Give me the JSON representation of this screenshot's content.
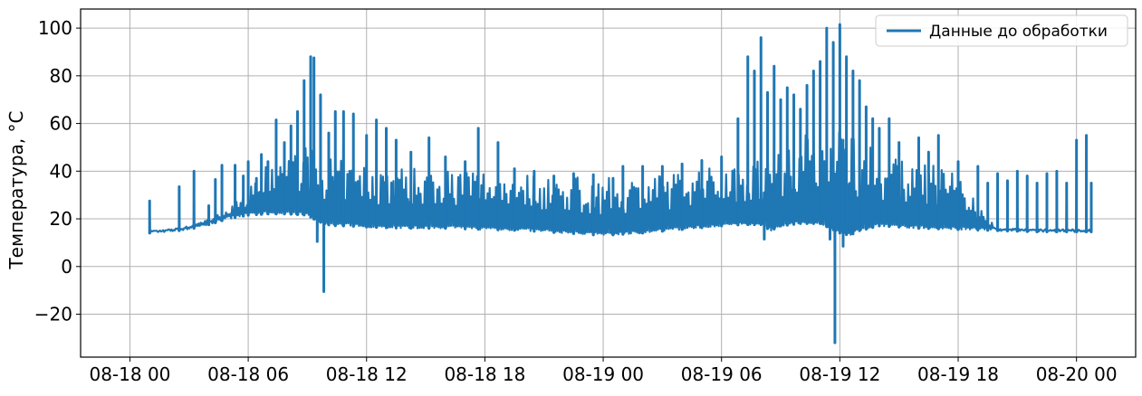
{
  "chart_data": {
    "type": "line",
    "title": "",
    "xlabel": "",
    "ylabel": "Температура, °C",
    "grid": true,
    "legend_position": "top-right",
    "xlim": [
      "2023-08-17T21:30",
      "2023-08-20T03:00"
    ],
    "ylim": [
      -38,
      108
    ],
    "x_ticks": [
      "08-18 00",
      "08-18 06",
      "08-18 12",
      "08-18 18",
      "08-19 00",
      "08-19 06",
      "08-19 12",
      "08-19 18",
      "08-20 00"
    ],
    "x_tick_values": [
      "2023-08-18T00:00",
      "2023-08-18T06:00",
      "2023-08-18T12:00",
      "2023-08-18T18:00",
      "2023-08-19T00:00",
      "2023-08-19T06:00",
      "2023-08-19T12:00",
      "2023-08-19T18:00",
      "2023-08-20T00:00"
    ],
    "y_ticks": [
      -20,
      0,
      20,
      40,
      60,
      80,
      100
    ],
    "y_tick_labels": [
      "−20",
      "0",
      "20",
      "40",
      "60",
      "80",
      "100"
    ],
    "series": [
      {
        "name": "Данные до обработки",
        "color": "#1f77b4",
        "baseline": {
          "x": [
            "2023-08-18T01:00",
            "2023-08-18T02:00",
            "2023-08-18T03:00",
            "2023-08-18T04:00",
            "2023-08-18T05:00",
            "2023-08-18T06:00",
            "2023-08-18T07:00",
            "2023-08-18T08:00",
            "2023-08-18T09:00",
            "2023-08-18T09:30",
            "2023-08-18T10:00",
            "2023-08-18T10:30",
            "2023-08-18T11:00",
            "2023-08-18T12:00",
            "2023-08-18T14:00",
            "2023-08-18T16:00",
            "2023-08-18T18:00",
            "2023-08-18T20:00",
            "2023-08-18T22:00",
            "2023-08-19T00:00",
            "2023-08-19T02:00",
            "2023-08-19T04:00",
            "2023-08-19T06:00",
            "2023-08-19T07:00",
            "2023-08-19T08:00",
            "2023-08-19T08:30",
            "2023-08-19T09:00",
            "2023-08-19T10:00",
            "2023-08-19T11:00",
            "2023-08-19T11:30",
            "2023-08-19T12:00",
            "2023-08-19T12:30",
            "2023-08-19T13:00",
            "2023-08-19T14:00",
            "2023-08-19T16:00",
            "2023-08-19T18:00",
            "2023-08-19T20:00",
            "2023-08-19T22:00",
            "2023-08-20T00:00",
            "2023-08-20T00:45"
          ],
          "y": [
            14,
            14.5,
            15.5,
            17.5,
            20,
            21.5,
            22,
            22,
            21.5,
            19,
            17.5,
            17,
            17,
            16.5,
            16,
            16,
            15.5,
            15,
            14,
            13,
            14,
            15.5,
            17,
            17.5,
            17.5,
            15,
            17,
            18,
            18,
            16,
            14,
            13,
            15,
            17,
            16,
            15.5,
            15,
            14.5,
            14.5,
            14.5
          ]
        },
        "upper_envelope": {
          "x": [
            "2023-08-18T01:00",
            "2023-08-18T02:00",
            "2023-08-18T03:00",
            "2023-08-18T04:00",
            "2023-08-18T05:00",
            "2023-08-18T06:00",
            "2023-08-18T07:00",
            "2023-08-18T08:00",
            "2023-08-18T09:00",
            "2023-08-18T10:00",
            "2023-08-18T11:00",
            "2023-08-18T12:00",
            "2023-08-18T14:00",
            "2023-08-18T16:00",
            "2023-08-18T18:00",
            "2023-08-18T20:00",
            "2023-08-18T22:00",
            "2023-08-19T00:00",
            "2023-08-19T02:00",
            "2023-08-19T04:00",
            "2023-08-19T06:00",
            "2023-08-19T08:00",
            "2023-08-19T10:00",
            "2023-08-19T12:00",
            "2023-08-19T14:00",
            "2023-08-19T16:00",
            "2023-08-19T18:00",
            "2023-08-19T19:00",
            "2023-08-19T20:00",
            "2023-08-20T00:00",
            "2023-08-20T00:45"
          ],
          "y": [
            15,
            15.5,
            17,
            20,
            24,
            32,
            43,
            47,
            50,
            46,
            44,
            43,
            42,
            42,
            41,
            40,
            38,
            37,
            38,
            40,
            43,
            46,
            55,
            62,
            48,
            43,
            42,
            25,
            16,
            15.5,
            15
          ]
        },
        "spikes": [
          {
            "x": "2023-08-18T01:00",
            "y": 27.5
          },
          {
            "x": "2023-08-18T02:30",
            "y": 33.5
          },
          {
            "x": "2023-08-18T03:15",
            "y": 40
          },
          {
            "x": "2023-08-18T04:00",
            "y": 25.5
          },
          {
            "x": "2023-08-18T04:20",
            "y": 36.5
          },
          {
            "x": "2023-08-18T04:40",
            "y": 42.5
          },
          {
            "x": "2023-08-18T05:20",
            "y": 42.5
          },
          {
            "x": "2023-08-18T05:45",
            "y": 38
          },
          {
            "x": "2023-08-18T06:00",
            "y": 44
          },
          {
            "x": "2023-08-18T06:25",
            "y": 37
          },
          {
            "x": "2023-08-18T06:40",
            "y": 47
          },
          {
            "x": "2023-08-18T07:00",
            "y": 44
          },
          {
            "x": "2023-08-18T07:25",
            "y": 61.5
          },
          {
            "x": "2023-08-18T07:50",
            "y": 52
          },
          {
            "x": "2023-08-18T08:10",
            "y": 59
          },
          {
            "x": "2023-08-18T08:30",
            "y": 65
          },
          {
            "x": "2023-08-18T08:50",
            "y": 78
          },
          {
            "x": "2023-08-18T09:10",
            "y": 88
          },
          {
            "x": "2023-08-18T09:20",
            "y": 87.5
          },
          {
            "x": "2023-08-18T09:40",
            "y": 72
          },
          {
            "x": "2023-08-18T10:05",
            "y": 56
          },
          {
            "x": "2023-08-18T10:25",
            "y": 65
          },
          {
            "x": "2023-08-18T10:50",
            "y": 65
          },
          {
            "x": "2023-08-18T11:20",
            "y": 64
          },
          {
            "x": "2023-08-18T12:00",
            "y": 55
          },
          {
            "x": "2023-08-18T12:30",
            "y": 61.5
          },
          {
            "x": "2023-08-18T13:00",
            "y": 58
          },
          {
            "x": "2023-08-18T13:30",
            "y": 53
          },
          {
            "x": "2023-08-18T14:15",
            "y": 48
          },
          {
            "x": "2023-08-18T15:10",
            "y": 54
          },
          {
            "x": "2023-08-18T16:00",
            "y": 46
          },
          {
            "x": "2023-08-18T17:00",
            "y": 44
          },
          {
            "x": "2023-08-18T17:40",
            "y": 58
          },
          {
            "x": "2023-08-18T18:40",
            "y": 52
          },
          {
            "x": "2023-08-18T19:30",
            "y": 41
          },
          {
            "x": "2023-08-18T20:30",
            "y": 40
          },
          {
            "x": "2023-08-18T21:30",
            "y": 38
          },
          {
            "x": "2023-08-18T22:30",
            "y": 39
          },
          {
            "x": "2023-08-18T23:30",
            "y": 38.5
          },
          {
            "x": "2023-08-19T00:30",
            "y": 37
          },
          {
            "x": "2023-08-19T01:00",
            "y": 42
          },
          {
            "x": "2023-08-19T02:00",
            "y": 42
          },
          {
            "x": "2023-08-19T03:00",
            "y": 42
          },
          {
            "x": "2023-08-19T04:00",
            "y": 43
          },
          {
            "x": "2023-08-19T05:00",
            "y": 44.5
          },
          {
            "x": "2023-08-19T06:00",
            "y": 46
          },
          {
            "x": "2023-08-19T06:50",
            "y": 62
          },
          {
            "x": "2023-08-19T07:20",
            "y": 88
          },
          {
            "x": "2023-08-19T07:40",
            "y": 82
          },
          {
            "x": "2023-08-19T08:00",
            "y": 96
          },
          {
            "x": "2023-08-19T08:20",
            "y": 73
          },
          {
            "x": "2023-08-19T08:40",
            "y": 84
          },
          {
            "x": "2023-08-19T09:00",
            "y": 70
          },
          {
            "x": "2023-08-19T09:20",
            "y": 75
          },
          {
            "x": "2023-08-19T09:40",
            "y": 72
          },
          {
            "x": "2023-08-19T10:00",
            "y": 66
          },
          {
            "x": "2023-08-19T10:20",
            "y": 76
          },
          {
            "x": "2023-08-19T10:40",
            "y": 82
          },
          {
            "x": "2023-08-19T11:00",
            "y": 86
          },
          {
            "x": "2023-08-19T11:20",
            "y": 100
          },
          {
            "x": "2023-08-19T11:40",
            "y": 94
          },
          {
            "x": "2023-08-19T12:00",
            "y": 101.5
          },
          {
            "x": "2023-08-19T12:20",
            "y": 88
          },
          {
            "x": "2023-08-19T12:40",
            "y": 82
          },
          {
            "x": "2023-08-19T13:00",
            "y": 78
          },
          {
            "x": "2023-08-19T13:20",
            "y": 67
          },
          {
            "x": "2023-08-19T13:40",
            "y": 62
          },
          {
            "x": "2023-08-19T14:00",
            "y": 58
          },
          {
            "x": "2023-08-19T14:30",
            "y": 62
          },
          {
            "x": "2023-08-19T15:00",
            "y": 52
          },
          {
            "x": "2023-08-19T16:00",
            "y": 54
          },
          {
            "x": "2023-08-19T16:30",
            "y": 48
          },
          {
            "x": "2023-08-19T17:00",
            "y": 55
          },
          {
            "x": "2023-08-19T18:00",
            "y": 44
          },
          {
            "x": "2023-08-19T19:00",
            "y": 42
          },
          {
            "x": "2023-08-19T19:30",
            "y": 35
          },
          {
            "x": "2023-08-19T20:00",
            "y": 39
          },
          {
            "x": "2023-08-19T20:30",
            "y": 36
          },
          {
            "x": "2023-08-19T21:00",
            "y": 40
          },
          {
            "x": "2023-08-19T21:30",
            "y": 38
          },
          {
            "x": "2023-08-19T22:00",
            "y": 35
          },
          {
            "x": "2023-08-19T22:30",
            "y": 39
          },
          {
            "x": "2023-08-19T23:00",
            "y": 40
          },
          {
            "x": "2023-08-19T23:30",
            "y": 35
          },
          {
            "x": "2023-08-20T00:00",
            "y": 53
          },
          {
            "x": "2023-08-20T00:30",
            "y": 55
          },
          {
            "x": "2023-08-20T00:45",
            "y": 35
          }
        ],
        "dips": [
          {
            "x": "2023-08-18T09:30",
            "y": 10.5
          },
          {
            "x": "2023-08-18T09:50",
            "y": -10.5
          },
          {
            "x": "2023-08-19T08:10",
            "y": 11.5
          },
          {
            "x": "2023-08-19T11:30",
            "y": 11.5
          },
          {
            "x": "2023-08-19T11:45",
            "y": -32
          },
          {
            "x": "2023-08-19T12:10",
            "y": 8.5
          }
        ]
      }
    ]
  }
}
